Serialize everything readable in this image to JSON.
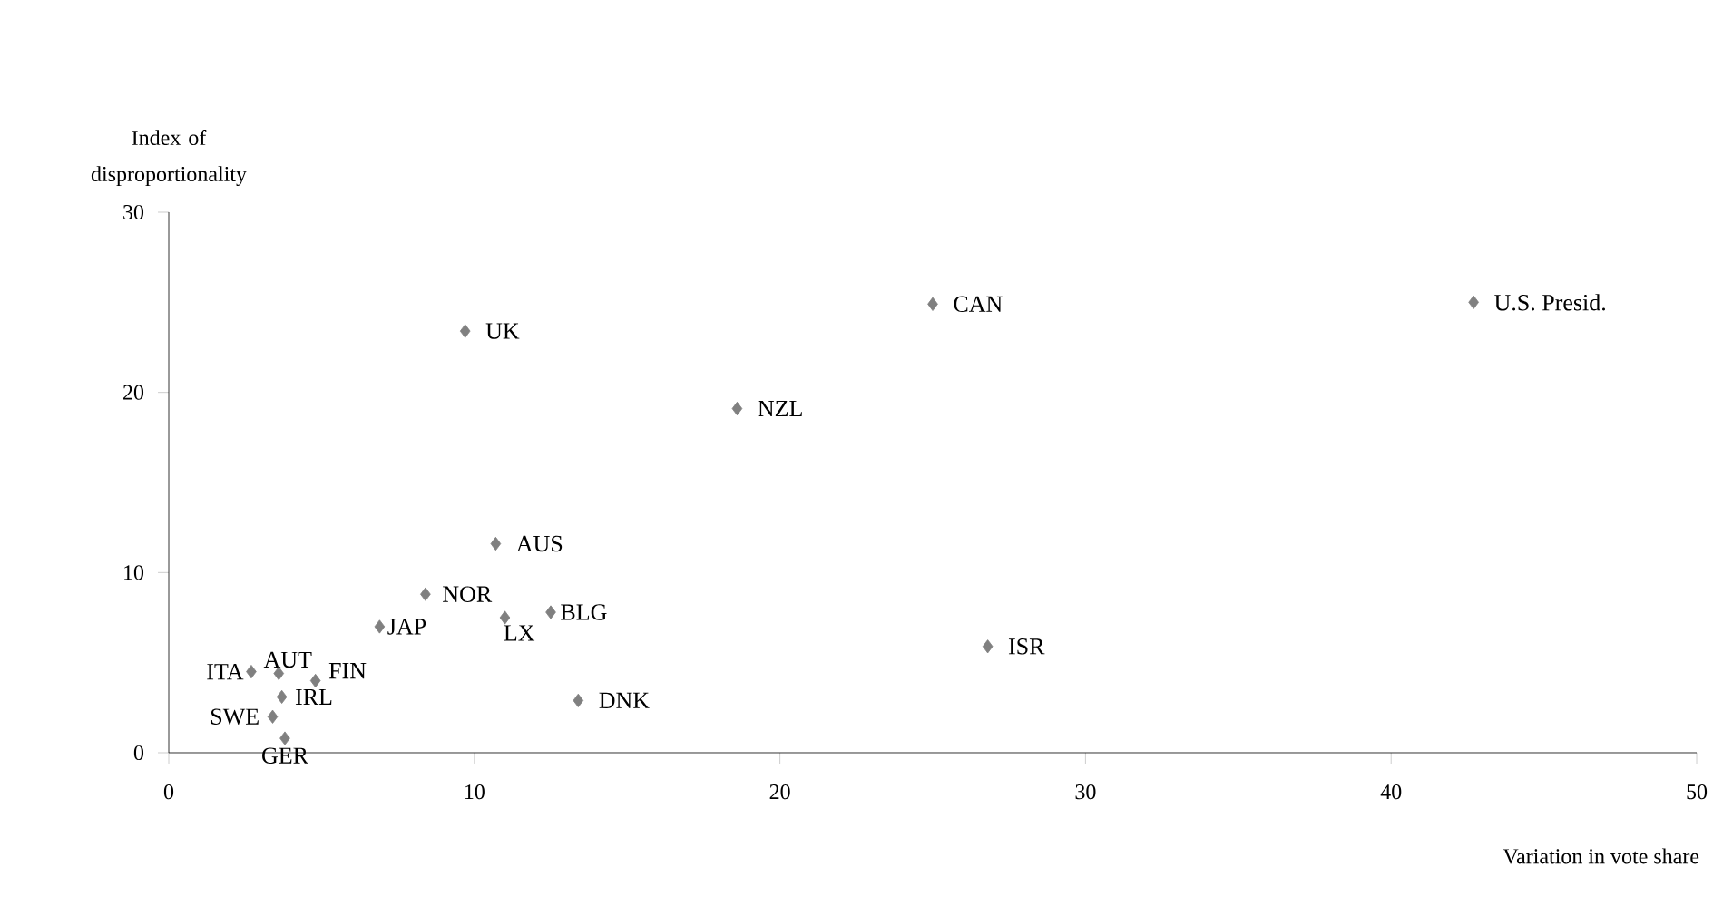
{
  "chart_data": {
    "type": "scatter",
    "xlabel": "Variation in vote share",
    "ylabel": "Index of disproportionality",
    "xlim": [
      0,
      50
    ],
    "ylim": [
      0,
      30
    ],
    "xticks": [
      0,
      10,
      20,
      30,
      40,
      50
    ],
    "yticks": [
      0,
      10,
      20,
      30
    ],
    "marker": "diamond",
    "series": [
      {
        "color": "#808080",
        "x": [
          9.7,
          25,
          42.7,
          18.6,
          10.7,
          8.4,
          12.5,
          11,
          6.9,
          26.8,
          2.7,
          3.6,
          4.8,
          3.7,
          13.4,
          3.4,
          3.8
        ],
        "values": [
          23.4,
          24.9,
          25,
          19.1,
          11.6,
          8.8,
          7.8,
          7.5,
          7,
          5.9,
          4.5,
          4.4,
          4,
          3.1,
          2.9,
          2,
          0.8
        ]
      }
    ],
    "annotations": [
      {
        "text": "UK",
        "x": 9.7,
        "y": 23.4
      },
      {
        "text": "CAN",
        "x": 25,
        "y": 24.9
      },
      {
        "text": "U.S. Presid.",
        "x": 42.7,
        "y": 25
      },
      {
        "text": "NZL",
        "x": 18.6,
        "y": 19.1
      },
      {
        "text": "AUS",
        "x": 10.7,
        "y": 11.6
      },
      {
        "text": "NOR",
        "x": 8.4,
        "y": 8.8
      },
      {
        "text": "BLG",
        "x": 12.5,
        "y": 7.8
      },
      {
        "text": "LX",
        "x": 11,
        "y": 7.5
      },
      {
        "text": "JAP",
        "x": 6.9,
        "y": 7
      },
      {
        "text": "ISR",
        "x": 26.8,
        "y": 5.9
      },
      {
        "text": "ITA",
        "x": 2.7,
        "y": 4.5
      },
      {
        "text": "AUT",
        "x": 3.6,
        "y": 4.4
      },
      {
        "text": "FIN",
        "x": 4.8,
        "y": 4
      },
      {
        "text": "IRL",
        "x": 3.7,
        "y": 3.1
      },
      {
        "text": "DNK",
        "x": 13.4,
        "y": 2.9
      },
      {
        "text": "SWE",
        "x": 3.4,
        "y": 2
      },
      {
        "text": "GER",
        "x": 3.8,
        "y": 0.8
      }
    ]
  }
}
